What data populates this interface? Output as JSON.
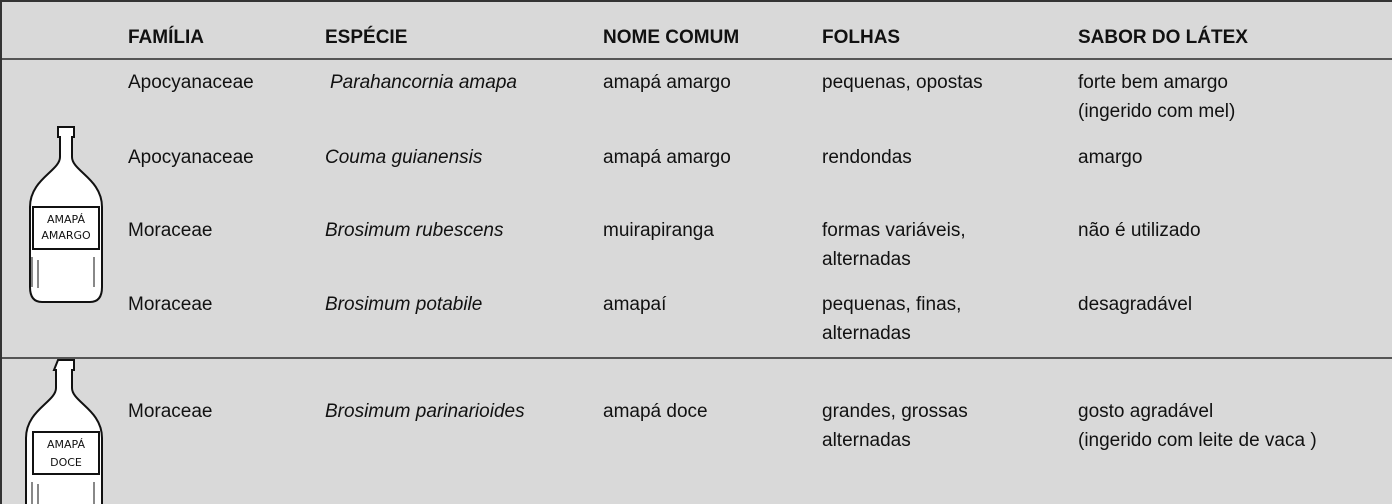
{
  "table": {
    "header": [
      "FAMÍLIA",
      "ESPÉCIE",
      "NOME COMUM",
      "FOLHAS",
      "SABOR DO LÁTEX"
    ],
    "rows": [
      [
        [
          "Apocyanaceae"
        ],
        [
          "Parahancornia amapa"
        ],
        [
          "amapá amargo"
        ],
        [
          "pequenas, opostas"
        ],
        [
          "forte bem amargo",
          "(ingerido com mel)"
        ]
      ],
      [
        [
          "Apocyanaceae"
        ],
        [
          "Couma guianensis"
        ],
        [
          "amapá amargo"
        ],
        [
          "rendondas"
        ],
        [
          "amargo"
        ]
      ],
      [
        [
          "Moraceae"
        ],
        [
          "Brosimum rubescens"
        ],
        [
          "muirapiranga"
        ],
        [
          "formas variáveis,",
          "alternadas"
        ],
        [
          "não é utilizado"
        ]
      ],
      [
        [
          "Moraceae"
        ],
        [
          "Brosimum potabile"
        ],
        [
          "amapaí"
        ],
        [
          "pequenas, finas,",
          "alternadas"
        ],
        [
          "desagradável"
        ]
      ],
      [
        [
          "Moraceae"
        ],
        [
          "Brosimum parinarioides"
        ],
        [
          "amapá doce"
        ],
        [
          "grandes, grossas",
          "alternadas"
        ],
        [
          "gosto agradável",
          "(ingerido com leite de vaca )"
        ]
      ]
    ],
    "groups": [
      {
        "label": [
          "AMAPÁ",
          "AMARGO"
        ]
      },
      {
        "label": [
          "AMAPÁ",
          "DOCE"
        ]
      }
    ]
  }
}
